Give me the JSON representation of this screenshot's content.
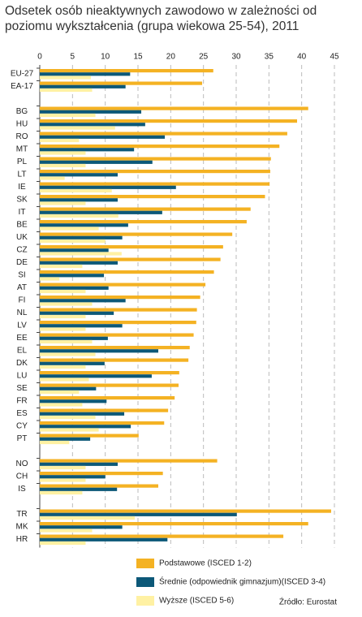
{
  "chart_data": {
    "type": "hbar",
    "title": "Odsetek osób nieaktywnych zawodowo w zależności od poziomu wykształcenia (grupa wiekowa 25-54), 2011",
    "source": "Źródło: Eurostat",
    "categories": [
      "EU-27",
      "EA-17",
      null,
      "BG",
      "HU",
      "RO",
      "MT",
      "PL",
      "LT",
      "IE",
      "SK",
      "IT",
      "BE",
      "UK",
      "CZ",
      "DE",
      "SI",
      "AT",
      "FI",
      "NL",
      "LV",
      "EE",
      "EL",
      "DK",
      "LU",
      "SE",
      "FR",
      "ES",
      "CY",
      "PT",
      null,
      "NO",
      "CH",
      "IS",
      null,
      "TR",
      "MK",
      "HR"
    ],
    "series": [
      {
        "name": "Podstawowe (ISCED 1-2)",
        "color": "#f4b223",
        "values": [
          26.5,
          24.8,
          null,
          41,
          39.3,
          37.8,
          36.6,
          35.3,
          35.2,
          35.1,
          34.4,
          32.2,
          31.6,
          29.4,
          28,
          27.6,
          26.6,
          25.3,
          24.5,
          24,
          23.9,
          23.5,
          22.9,
          22.7,
          21.3,
          21.2,
          20.6,
          19.6,
          19,
          15.1,
          null,
          27.1,
          18.8,
          18.1,
          null,
          44.5,
          41,
          37.2
        ]
      },
      {
        "name": "Średnie (odpowiednik gimnazjum)(ISCED 3-4)",
        "color": "#0c5878",
        "values": [
          13.8,
          13.1,
          null,
          15.5,
          16.1,
          19.1,
          14.4,
          17.2,
          11.9,
          20.8,
          11.9,
          18.7,
          13.5,
          12.6,
          10.5,
          11.9,
          9.8,
          10.5,
          13.1,
          11.3,
          12.6,
          10.4,
          18.1,
          9.9,
          17.1,
          8.6,
          10.2,
          12.9,
          13.9,
          7.7,
          null,
          11.9,
          10,
          11.8,
          null,
          30.1,
          12.6,
          19.5
        ]
      },
      {
        "name": "Wyższe (ISCED 5-6)",
        "color": "#fff1a3",
        "values": [
          7.8,
          8,
          null,
          8.5,
          11.5,
          6,
          7,
          7,
          3.8,
          11,
          7,
          12,
          9,
          10,
          12.5,
          6.5,
          3,
          7,
          8,
          7,
          7,
          8,
          8.5,
          7,
          7.5,
          6,
          6.5,
          8.5,
          9,
          4.5,
          null,
          7,
          7,
          6.5,
          null,
          14.5,
          8,
          7
        ]
      }
    ],
    "xlim": [
      0,
      45
    ],
    "xticks": [
      0,
      5,
      10,
      15,
      20,
      25,
      30,
      35,
      40,
      45
    ],
    "grid": true
  }
}
